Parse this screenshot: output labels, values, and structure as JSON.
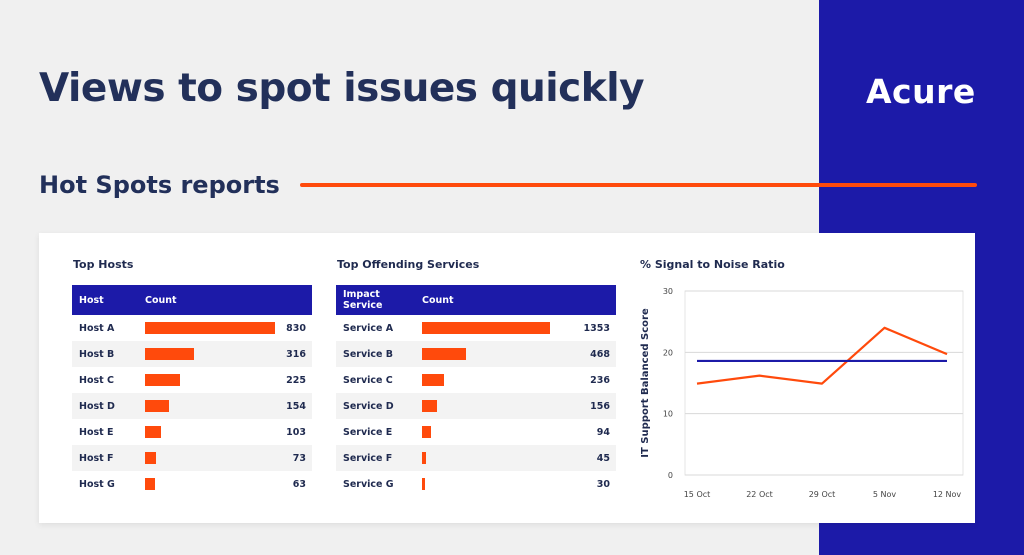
{
  "headline": "Views to spot issues quickly",
  "brand": "Acure",
  "section_title": "Hot Spots reports",
  "colors": {
    "brand_panel": "#1c1aa8",
    "accent": "#ff4a0c",
    "navy_text": "#22305a"
  },
  "top_hosts": {
    "title": "Top Hosts",
    "headers": [
      "Host",
      "Count"
    ],
    "max": 830,
    "rows": [
      {
        "name": "Host A",
        "count": 830
      },
      {
        "name": "Host B",
        "count": 316
      },
      {
        "name": "Host C",
        "count": 225
      },
      {
        "name": "Host D",
        "count": 154
      },
      {
        "name": "Host E",
        "count": 103
      },
      {
        "name": "Host F",
        "count": 73
      },
      {
        "name": "Host G",
        "count": 63
      }
    ]
  },
  "top_services": {
    "title": "Top Offending Services",
    "headers": [
      "Impact Service",
      "Count"
    ],
    "max": 1353,
    "rows": [
      {
        "name": "Service A",
        "count": 1353
      },
      {
        "name": "Service B",
        "count": 468
      },
      {
        "name": "Service C",
        "count": 236
      },
      {
        "name": "Service D",
        "count": 156
      },
      {
        "name": "Service E",
        "count": 94
      },
      {
        "name": "Service F",
        "count": 45
      },
      {
        "name": "Service G",
        "count": 30
      }
    ]
  },
  "chart_data": {
    "type": "line",
    "title": "% Signal to Noise Ratio",
    "xlabel": "",
    "ylabel": "IT Support Balanced Score",
    "categories": [
      "15 Oct",
      "22 Oct",
      "29 Oct",
      "5 Nov",
      "12 Nov"
    ],
    "ylim": [
      0,
      30
    ],
    "yticks": [
      0,
      10,
      20,
      30
    ],
    "grid": true,
    "series": [
      {
        "color": "#ff4a0c",
        "values": [
          14.9,
          16.2,
          14.9,
          24.0,
          19.7
        ]
      },
      {
        "color": "#1c1aa8",
        "values": [
          18.6,
          18.6,
          18.6,
          18.6,
          18.6
        ]
      }
    ]
  }
}
